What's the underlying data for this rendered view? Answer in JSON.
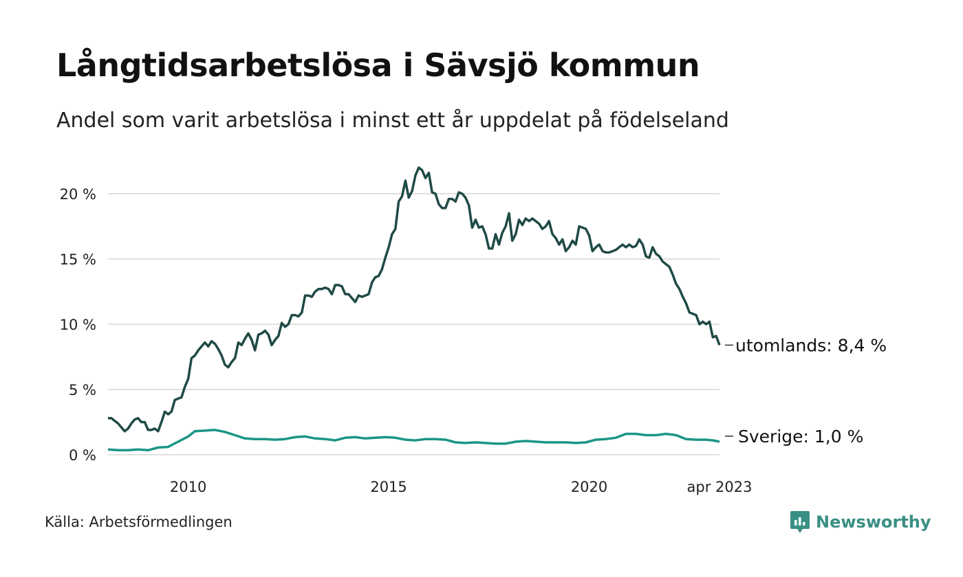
{
  "title": "Långtidsarbetslösa i Sävsjö kommun",
  "subtitle": "Andel som varit arbetslösa i minst ett år uppdelat på födelseland",
  "source": "Källa: Arbetsförmedlingen",
  "brand": "Newsworthy",
  "colors": {
    "utomlands": "#1f4a46",
    "sverige": "#1b9585",
    "grid": "#e0e0e0"
  },
  "chart_data": {
    "type": "line",
    "title": "Långtidsarbetslösa i Sävsjö kommun",
    "subtitle": "Andel som varit arbetslösa i minst ett år uppdelat på födelseland",
    "ylim": [
      0,
      22
    ],
    "yticks": [
      0,
      5,
      10,
      15,
      20
    ],
    "ytick_labels": [
      "0 %",
      "5 %",
      "10 %",
      "15 %",
      "20 %"
    ],
    "xlim": [
      "2008-01",
      "2023-04"
    ],
    "xticks": [
      "2010-01",
      "2015-01",
      "2020-01",
      "2023-04"
    ],
    "xtick_labels": [
      "2010",
      "2015",
      "2020",
      "apr 2023"
    ],
    "grid": true,
    "series": [
      {
        "name": "utomlands",
        "end_label": "utomlands: 8,4 %",
        "points": [
          [
            "2008-01",
            2.8
          ],
          [
            "2008-02",
            2.8
          ],
          [
            "2008-03",
            2.6
          ],
          [
            "2008-04",
            2.4
          ],
          [
            "2008-05",
            2.1
          ],
          [
            "2008-06",
            1.8
          ],
          [
            "2008-07",
            2.0
          ],
          [
            "2008-08",
            2.4
          ],
          [
            "2008-09",
            2.7
          ],
          [
            "2008-10",
            2.8
          ],
          [
            "2008-11",
            2.5
          ],
          [
            "2008-12",
            2.5
          ],
          [
            "2009-01",
            1.9
          ],
          [
            "2009-02",
            1.9
          ],
          [
            "2009-03",
            2.0
          ],
          [
            "2009-04",
            1.8
          ],
          [
            "2009-05",
            2.5
          ],
          [
            "2009-06",
            3.3
          ],
          [
            "2009-07",
            3.1
          ],
          [
            "2009-08",
            3.3
          ],
          [
            "2009-09",
            4.2
          ],
          [
            "2009-10",
            4.3
          ],
          [
            "2009-11",
            4.4
          ],
          [
            "2009-12",
            5.2
          ],
          [
            "2010-01",
            5.8
          ],
          [
            "2010-02",
            7.4
          ],
          [
            "2010-03",
            7.6
          ],
          [
            "2010-04",
            8.0
          ],
          [
            "2010-05",
            8.3
          ],
          [
            "2010-06",
            8.6
          ],
          [
            "2010-07",
            8.3
          ],
          [
            "2010-08",
            8.7
          ],
          [
            "2010-09",
            8.5
          ],
          [
            "2010-10",
            8.1
          ],
          [
            "2010-11",
            7.6
          ],
          [
            "2010-12",
            6.9
          ],
          [
            "2011-01",
            6.7
          ],
          [
            "2011-02",
            7.1
          ],
          [
            "2011-03",
            7.4
          ],
          [
            "2011-04",
            8.6
          ],
          [
            "2011-05",
            8.4
          ],
          [
            "2011-06",
            8.9
          ],
          [
            "2011-07",
            9.3
          ],
          [
            "2011-08",
            8.8
          ],
          [
            "2011-09",
            8.0
          ],
          [
            "2011-10",
            9.2
          ],
          [
            "2011-11",
            9.3
          ],
          [
            "2011-12",
            9.5
          ],
          [
            "2012-01",
            9.2
          ],
          [
            "2012-02",
            8.4
          ],
          [
            "2012-03",
            8.8
          ],
          [
            "2012-04",
            9.1
          ],
          [
            "2012-05",
            10.1
          ],
          [
            "2012-06",
            9.8
          ],
          [
            "2012-07",
            10.0
          ],
          [
            "2012-08",
            10.7
          ],
          [
            "2012-09",
            10.7
          ],
          [
            "2012-10",
            10.6
          ],
          [
            "2012-11",
            10.9
          ],
          [
            "2012-12",
            12.2
          ],
          [
            "2013-01",
            12.2
          ],
          [
            "2013-02",
            12.1
          ],
          [
            "2013-03",
            12.5
          ],
          [
            "2013-04",
            12.7
          ],
          [
            "2013-05",
            12.7
          ],
          [
            "2013-06",
            12.8
          ],
          [
            "2013-07",
            12.7
          ],
          [
            "2013-08",
            12.3
          ],
          [
            "2013-09",
            13.0
          ],
          [
            "2013-10",
            13.0
          ],
          [
            "2013-11",
            12.9
          ],
          [
            "2013-12",
            12.3
          ],
          [
            "2014-01",
            12.3
          ],
          [
            "2014-02",
            12.0
          ],
          [
            "2014-03",
            11.7
          ],
          [
            "2014-04",
            12.2
          ],
          [
            "2014-05",
            12.1
          ],
          [
            "2014-06",
            12.2
          ],
          [
            "2014-07",
            12.3
          ],
          [
            "2014-08",
            13.2
          ],
          [
            "2014-09",
            13.6
          ],
          [
            "2014-10",
            13.7
          ],
          [
            "2014-11",
            14.2
          ],
          [
            "2014-12",
            15.1
          ],
          [
            "2015-01",
            15.9
          ],
          [
            "2015-02",
            16.9
          ],
          [
            "2015-03",
            17.3
          ],
          [
            "2015-04",
            19.4
          ],
          [
            "2015-05",
            19.8
          ],
          [
            "2015-06",
            21.0
          ],
          [
            "2015-07",
            19.7
          ],
          [
            "2015-08",
            20.2
          ],
          [
            "2015-09",
            21.4
          ],
          [
            "2015-10",
            22.0
          ],
          [
            "2015-11",
            21.8
          ],
          [
            "2015-12",
            21.2
          ],
          [
            "2016-01",
            21.6
          ],
          [
            "2016-02",
            20.1
          ],
          [
            "2016-03",
            20.0
          ],
          [
            "2016-04",
            19.2
          ],
          [
            "2016-05",
            18.9
          ],
          [
            "2016-06",
            18.9
          ],
          [
            "2016-07",
            19.6
          ],
          [
            "2016-08",
            19.6
          ],
          [
            "2016-09",
            19.4
          ],
          [
            "2016-10",
            20.1
          ],
          [
            "2016-11",
            20.0
          ],
          [
            "2016-12",
            19.7
          ],
          [
            "2017-01",
            19.1
          ],
          [
            "2017-02",
            17.4
          ],
          [
            "2017-03",
            18.0
          ],
          [
            "2017-04",
            17.4
          ],
          [
            "2017-05",
            17.5
          ],
          [
            "2017-06",
            16.9
          ],
          [
            "2017-07",
            15.8
          ],
          [
            "2017-08",
            15.8
          ],
          [
            "2017-09",
            16.9
          ],
          [
            "2017-10",
            16.1
          ],
          [
            "2017-11",
            17.0
          ],
          [
            "2017-12",
            17.5
          ],
          [
            "2018-01",
            18.5
          ],
          [
            "2018-02",
            16.4
          ],
          [
            "2018-03",
            16.9
          ],
          [
            "2018-04",
            18.0
          ],
          [
            "2018-05",
            17.6
          ],
          [
            "2018-06",
            18.1
          ],
          [
            "2018-07",
            17.9
          ],
          [
            "2018-08",
            18.1
          ],
          [
            "2018-09",
            17.9
          ],
          [
            "2018-10",
            17.7
          ],
          [
            "2018-11",
            17.3
          ],
          [
            "2018-12",
            17.5
          ],
          [
            "2019-01",
            17.9
          ],
          [
            "2019-02",
            16.9
          ],
          [
            "2019-03",
            16.6
          ],
          [
            "2019-04",
            16.1
          ],
          [
            "2019-05",
            16.5
          ],
          [
            "2019-06",
            15.6
          ],
          [
            "2019-07",
            15.9
          ],
          [
            "2019-08",
            16.4
          ],
          [
            "2019-09",
            16.1
          ],
          [
            "2019-10",
            17.5
          ],
          [
            "2019-11",
            17.4
          ],
          [
            "2019-12",
            17.3
          ],
          [
            "2020-01",
            16.8
          ],
          [
            "2020-02",
            15.6
          ],
          [
            "2020-03",
            15.9
          ],
          [
            "2020-04",
            16.1
          ],
          [
            "2020-05",
            15.6
          ],
          [
            "2020-06",
            15.5
          ],
          [
            "2020-07",
            15.5
          ],
          [
            "2020-08",
            15.6
          ],
          [
            "2020-09",
            15.7
          ],
          [
            "2020-10",
            15.9
          ],
          [
            "2020-11",
            16.1
          ],
          [
            "2020-12",
            15.9
          ],
          [
            "2021-01",
            16.1
          ],
          [
            "2021-02",
            15.9
          ],
          [
            "2021-03",
            16.0
          ],
          [
            "2021-04",
            16.5
          ],
          [
            "2021-05",
            16.1
          ],
          [
            "2021-06",
            15.2
          ],
          [
            "2021-07",
            15.1
          ],
          [
            "2021-08",
            15.9
          ],
          [
            "2021-09",
            15.4
          ],
          [
            "2021-10",
            15.2
          ],
          [
            "2021-11",
            14.8
          ],
          [
            "2021-12",
            14.6
          ],
          [
            "2022-01",
            14.4
          ],
          [
            "2022-02",
            13.8
          ],
          [
            "2022-03",
            13.1
          ],
          [
            "2022-04",
            12.7
          ],
          [
            "2022-05",
            12.1
          ],
          [
            "2022-06",
            11.6
          ],
          [
            "2022-07",
            10.9
          ],
          [
            "2022-08",
            10.8
          ],
          [
            "2022-09",
            10.7
          ],
          [
            "2022-10",
            10.0
          ],
          [
            "2022-11",
            10.2
          ],
          [
            "2022-12",
            10.0
          ],
          [
            "2023-01",
            10.2
          ],
          [
            "2023-02",
            9.0
          ],
          [
            "2023-03",
            9.1
          ],
          [
            "2023-04",
            8.4
          ]
        ]
      },
      {
        "name": "Sverige",
        "end_label": "Sverige: 1,0 %",
        "points": [
          [
            "2008-01",
            0.4
          ],
          [
            "2008-04",
            0.35
          ],
          [
            "2008-07",
            0.35
          ],
          [
            "2008-10",
            0.4
          ],
          [
            "2009-01",
            0.35
          ],
          [
            "2009-04",
            0.55
          ],
          [
            "2009-07",
            0.6
          ],
          [
            "2009-10",
            1.0
          ],
          [
            "2010-01",
            1.4
          ],
          [
            "2010-03",
            1.8
          ],
          [
            "2010-06",
            1.85
          ],
          [
            "2010-09",
            1.9
          ],
          [
            "2010-12",
            1.75
          ],
          [
            "2011-03",
            1.5
          ],
          [
            "2011-06",
            1.25
          ],
          [
            "2011-09",
            1.2
          ],
          [
            "2011-12",
            1.2
          ],
          [
            "2012-03",
            1.15
          ],
          [
            "2012-06",
            1.2
          ],
          [
            "2012-09",
            1.35
          ],
          [
            "2012-12",
            1.4
          ],
          [
            "2013-03",
            1.25
          ],
          [
            "2013-06",
            1.2
          ],
          [
            "2013-09",
            1.1
          ],
          [
            "2013-12",
            1.3
          ],
          [
            "2014-03",
            1.35
          ],
          [
            "2014-06",
            1.25
          ],
          [
            "2014-09",
            1.3
          ],
          [
            "2014-12",
            1.35
          ],
          [
            "2015-03",
            1.3
          ],
          [
            "2015-06",
            1.15
          ],
          [
            "2015-09",
            1.1
          ],
          [
            "2015-12",
            1.2
          ],
          [
            "2016-03",
            1.2
          ],
          [
            "2016-06",
            1.15
          ],
          [
            "2016-09",
            0.95
          ],
          [
            "2016-12",
            0.9
          ],
          [
            "2017-03",
            0.95
          ],
          [
            "2017-06",
            0.9
          ],
          [
            "2017-09",
            0.85
          ],
          [
            "2017-12",
            0.85
          ],
          [
            "2018-03",
            1.0
          ],
          [
            "2018-06",
            1.05
          ],
          [
            "2018-09",
            1.0
          ],
          [
            "2018-12",
            0.95
          ],
          [
            "2019-03",
            0.95
          ],
          [
            "2019-06",
            0.95
          ],
          [
            "2019-09",
            0.9
          ],
          [
            "2019-12",
            0.95
          ],
          [
            "2020-03",
            1.15
          ],
          [
            "2020-06",
            1.2
          ],
          [
            "2020-09",
            1.3
          ],
          [
            "2020-12",
            1.6
          ],
          [
            "2021-03",
            1.6
          ],
          [
            "2021-06",
            1.5
          ],
          [
            "2021-09",
            1.5
          ],
          [
            "2021-12",
            1.6
          ],
          [
            "2022-03",
            1.5
          ],
          [
            "2022-06",
            1.2
          ],
          [
            "2022-09",
            1.15
          ],
          [
            "2022-12",
            1.15
          ],
          [
            "2023-02",
            1.1
          ],
          [
            "2023-04",
            1.0
          ]
        ]
      }
    ]
  }
}
